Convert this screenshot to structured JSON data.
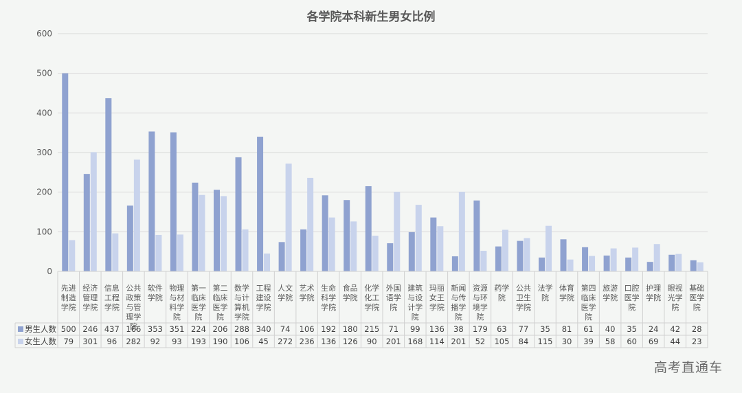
{
  "watermark": "高考直通车",
  "chart_data": {
    "type": "bar",
    "title": "各学院本科新生男女比例",
    "xlabel": "",
    "ylabel": "",
    "ylim": [
      0,
      600
    ],
    "yticks": [
      0,
      100,
      200,
      300,
      400,
      500,
      600
    ],
    "grid": true,
    "legend": "data-table",
    "colors": {
      "male": "#8fa2d0",
      "female": "#c8d3ec"
    },
    "categories": [
      "先进制造学院",
      "经济管理学院",
      "信息工程学院",
      "公共政策与管理学院",
      "软件学院",
      "物理与材料学院",
      "第一临床医学院",
      "第二临床医学院",
      "数学与计算机学院",
      "工程建设学院",
      "人文学院",
      "艺术学院",
      "生命科学学院",
      "食品学院",
      "化学化工学院",
      "外国语学院",
      "建筑与设计学院",
      "玛丽女王学院",
      "新闻与传播学院",
      "资源与环境学院",
      "药学院",
      "公共卫生学院",
      "法学院",
      "体育学院",
      "第四临床医学院",
      "旅游学院",
      "口腔医学院",
      "护理学院",
      "眼视光学院",
      "基础医学院"
    ],
    "category_lines": [
      [
        "先进",
        "制造",
        "学院"
      ],
      [
        "经济",
        "管理",
        "学院"
      ],
      [
        "信息",
        "工程",
        "学院"
      ],
      [
        "公共",
        "政策",
        "与管",
        "理学",
        "院"
      ],
      [
        "软件",
        "学院"
      ],
      [
        "物理",
        "与材",
        "料学",
        "院"
      ],
      [
        "第一",
        "临床",
        "医学",
        "院"
      ],
      [
        "第二",
        "临床",
        "医学",
        "院"
      ],
      [
        "数学",
        "与计",
        "算机",
        "学院"
      ],
      [
        "工程",
        "建设",
        "学院"
      ],
      [
        "人文",
        "学院"
      ],
      [
        "艺术",
        "学院"
      ],
      [
        "生命",
        "科学",
        "学院"
      ],
      [
        "食品",
        "学院"
      ],
      [
        "化学",
        "化工",
        "学院"
      ],
      [
        "外国",
        "语学",
        "院"
      ],
      [
        "建筑",
        "与设",
        "计学",
        "院"
      ],
      [
        "玛丽",
        "女王",
        "学院"
      ],
      [
        "新闻",
        "与传",
        "播学",
        "院"
      ],
      [
        "资源",
        "与环",
        "境学",
        "院"
      ],
      [
        "药学",
        "院"
      ],
      [
        "公共",
        "卫生",
        "学院"
      ],
      [
        "法学",
        "院"
      ],
      [
        "体育",
        "学院"
      ],
      [
        "第四",
        "临床",
        "医学",
        "院"
      ],
      [
        "旅游",
        "学院"
      ],
      [
        "口腔",
        "医学",
        "院"
      ],
      [
        "护理",
        "学院"
      ],
      [
        "眼视",
        "光学",
        "院"
      ],
      [
        "基础",
        "医学",
        "院"
      ]
    ],
    "series": [
      {
        "name": "男生人数",
        "color": "#8fa2d0",
        "values": [
          500,
          246,
          437,
          166,
          353,
          351,
          224,
          206,
          288,
          340,
          74,
          106,
          192,
          180,
          215,
          71,
          99,
          136,
          38,
          179,
          63,
          77,
          35,
          81,
          61,
          40,
          35,
          24,
          42,
          28
        ]
      },
      {
        "name": "女生人数",
        "color": "#c8d3ec",
        "values": [
          79,
          301,
          96,
          282,
          92,
          93,
          193,
          190,
          106,
          45,
          272,
          236,
          136,
          126,
          90,
          201,
          168,
          114,
          201,
          52,
          105,
          84,
          115,
          30,
          39,
          58,
          60,
          69,
          44,
          23
        ]
      }
    ]
  }
}
